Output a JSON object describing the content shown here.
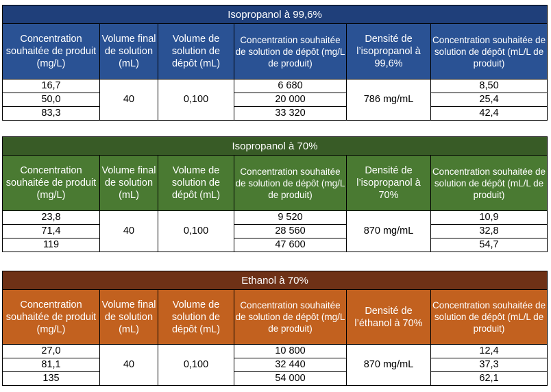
{
  "headers": {
    "c1": "Concentration souhaitée de produit (mg/L)",
    "c2": "Volume final de solution (mL)",
    "c3": "Volume de solution de dépôt (mL)",
    "c4": "Concentration souhaitée de solution de dépôt (mg/L de produit)",
    "c6": "Concentration souhaitée de solution de dépôt (mL/L de produit)"
  },
  "tables": [
    {
      "title": "Isopropanol à 99,6%",
      "density_header": "Densité de l’isopropanol à 99,6%",
      "volume_final": "40",
      "volume_depot": "0,100",
      "density": "786 mg/mL",
      "rows": [
        {
          "conc": "16,7",
          "depot_mg": "6 680",
          "depot_ml": "8,50"
        },
        {
          "conc": "50,0",
          "depot_mg": "20 000",
          "depot_ml": "25,4"
        },
        {
          "conc": "83,3",
          "depot_mg": "33 320",
          "depot_ml": "42,4"
        }
      ]
    },
    {
      "title": "Isopropanol à 70%",
      "density_header": "Densité de l’isopropanol à 70%",
      "volume_final": "40",
      "volume_depot": "0,100",
      "density": "870 mg/mL",
      "rows": [
        {
          "conc": "23,8",
          "depot_mg": "9 520",
          "depot_ml": "10,9"
        },
        {
          "conc": "71,4",
          "depot_mg": "28 560",
          "depot_ml": "32,8"
        },
        {
          "conc": "119",
          "depot_mg": "47 600",
          "depot_ml": "54,7"
        }
      ]
    },
    {
      "title": "Ethanol à 70%",
      "density_header": "Densité de l’éthanol à 70%",
      "volume_final": "40",
      "volume_depot": "0,100",
      "density": "870 mg/mL",
      "rows": [
        {
          "conc": "27,0",
          "depot_mg": "10 800",
          "depot_ml": "12,4"
        },
        {
          "conc": "81,1",
          "depot_mg": "32 440",
          "depot_ml": "37,3"
        },
        {
          "conc": "135",
          "depot_mg": "54 000",
          "depot_ml": "62,1"
        }
      ]
    }
  ]
}
